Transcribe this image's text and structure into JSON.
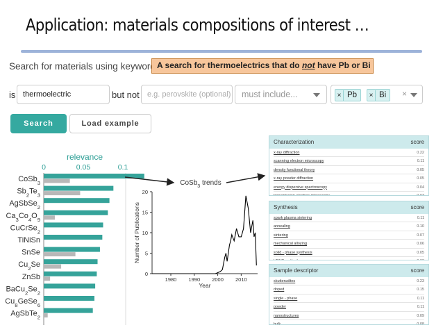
{
  "slide": {
    "title": "Application: materials compositions of interest …",
    "callout_pre": "A search for thermoelectrics that do ",
    "callout_not": "not",
    "callout_post": " have Pb or Bi"
  },
  "search": {
    "heading": "Search for materials using keywords",
    "is_label": "is",
    "is_value": "thermoelectric",
    "butnot_label": "but not",
    "butnot_placeholder": "e.g. perovskite (optional)",
    "include_placeholder": "must include...",
    "exclude_tags": [
      "Pb",
      "Bi"
    ],
    "tag_remove_glyph": "×",
    "clear_glyph": "×",
    "search_button": "Search",
    "load_button": "Load example"
  },
  "relevance_chart": {
    "title": "relevance",
    "ticks": [
      "0",
      "0.05",
      "0.1"
    ],
    "colors": {
      "primary": "#35a39a",
      "secondary": "#b8b8b8"
    },
    "items": [
      {
        "label": [
          "CoSb",
          {
            "sub": "3"
          }
        ],
        "primary": 0.127,
        "secondary": 0.033
      },
      {
        "label": [
          "Sb",
          {
            "sub": "2"
          },
          "Te",
          {
            "sub": "3"
          }
        ],
        "primary": 0.088,
        "secondary": 0.046
      },
      {
        "label": [
          "AgSbSe",
          {
            "sub": "2"
          }
        ],
        "primary": 0.083,
        "secondary": 0.0
      },
      {
        "label": [
          "Ca",
          {
            "sub": "3"
          },
          "Co",
          {
            "sub": "4"
          },
          "O",
          {
            "sub": "9"
          }
        ],
        "primary": 0.081,
        "secondary": 0.014
      },
      {
        "label": [
          "CuCrSe",
          {
            "sub": "2"
          }
        ],
        "primary": 0.075,
        "secondary": 0.0
      },
      {
        "label": [
          "TiNiSn"
        ],
        "primary": 0.074,
        "secondary": 0.0
      },
      {
        "label": [
          "SnSe"
        ],
        "primary": 0.071,
        "secondary": 0.04
      },
      {
        "label": [
          "Cu",
          {
            "sub": "2"
          },
          "Se"
        ],
        "primary": 0.068,
        "secondary": 0.022
      },
      {
        "label": [
          "ZnSb"
        ],
        "primary": 0.067,
        "secondary": 0.008
      },
      {
        "label": [
          "BaCu",
          {
            "sub": "2"
          },
          "Se",
          {
            "sub": "2"
          }
        ],
        "primary": 0.065,
        "secondary": 0.0
      },
      {
        "label": [
          "Cu",
          {
            "sub": "8"
          },
          "GeSe",
          {
            "sub": "6"
          }
        ],
        "primary": 0.064,
        "secondary": 0.0
      },
      {
        "label": [
          "AgSbTe",
          {
            "sub": "2"
          }
        ],
        "primary": 0.062,
        "secondary": 0.005
      }
    ]
  },
  "chart_data": {
    "type": "line",
    "title_parts": [
      "CoSb",
      {
        "sub": "3"
      },
      " trends"
    ],
    "xlabel": "Year",
    "ylabel": "Number of Publications",
    "xlim": [
      1972,
      2017
    ],
    "ylim": [
      0,
      20
    ],
    "xticks": [
      1980,
      1990,
      2000,
      2010
    ],
    "yticks": [
      0,
      5,
      10,
      15,
      20
    ],
    "color": "#000000",
    "x": [
      1972,
      1999,
      2001,
      2002,
      2003,
      2003.5,
      2004,
      2005,
      2005.5,
      2006,
      2007,
      2008,
      2009,
      2010,
      2011,
      2012,
      2013,
      2014,
      2015,
      2015.5,
      2016,
      2016.5
    ],
    "y": [
      0,
      0,
      0.5,
      1,
      4,
      5,
      3,
      7,
      8,
      9.5,
      8,
      11,
      9,
      9,
      11,
      19,
      16,
      10,
      13,
      9,
      10,
      2
    ]
  },
  "panels": [
    {
      "title": "Characterization",
      "score_label": "score",
      "rows": [
        {
          "k": "x-ray diffraction",
          "v": "0.22"
        },
        {
          "k": "scanning electron microscopy",
          "v": "0.11"
        },
        {
          "k": "density functional theory",
          "v": "0.05"
        },
        {
          "k": "x-ray powder diffraction",
          "v": "0.05"
        },
        {
          "k": "energy dispersive spectroscopy",
          "v": "0.04"
        },
        {
          "k": "transmission electron microscopy",
          "v": "0.03"
        }
      ]
    },
    {
      "title": "Synthesis",
      "score_label": "score",
      "rows": [
        {
          "k": "spark plasma sintering",
          "v": "0.11"
        },
        {
          "k": "annealing",
          "v": "0.10"
        },
        {
          "k": "sintering",
          "v": "0.07"
        },
        {
          "k": "mechanical alloying",
          "v": "0.06"
        },
        {
          "k": "solid - phase synthesis",
          "v": "0.05"
        },
        {
          "k": "HPHT method",
          "v": "0.03"
        }
      ]
    },
    {
      "title": "Sample descriptor",
      "score_label": "score",
      "rows": [
        {
          "k": "skutterudites",
          "v": "0.23"
        },
        {
          "k": "doped",
          "v": "0.15"
        },
        {
          "k": "single - phase",
          "v": "0.11"
        },
        {
          "k": "powder",
          "v": "0.11"
        },
        {
          "k": "nanostructures",
          "v": "0.09"
        },
        {
          "k": "bulk",
          "v": "0.08"
        }
      ]
    }
  ]
}
